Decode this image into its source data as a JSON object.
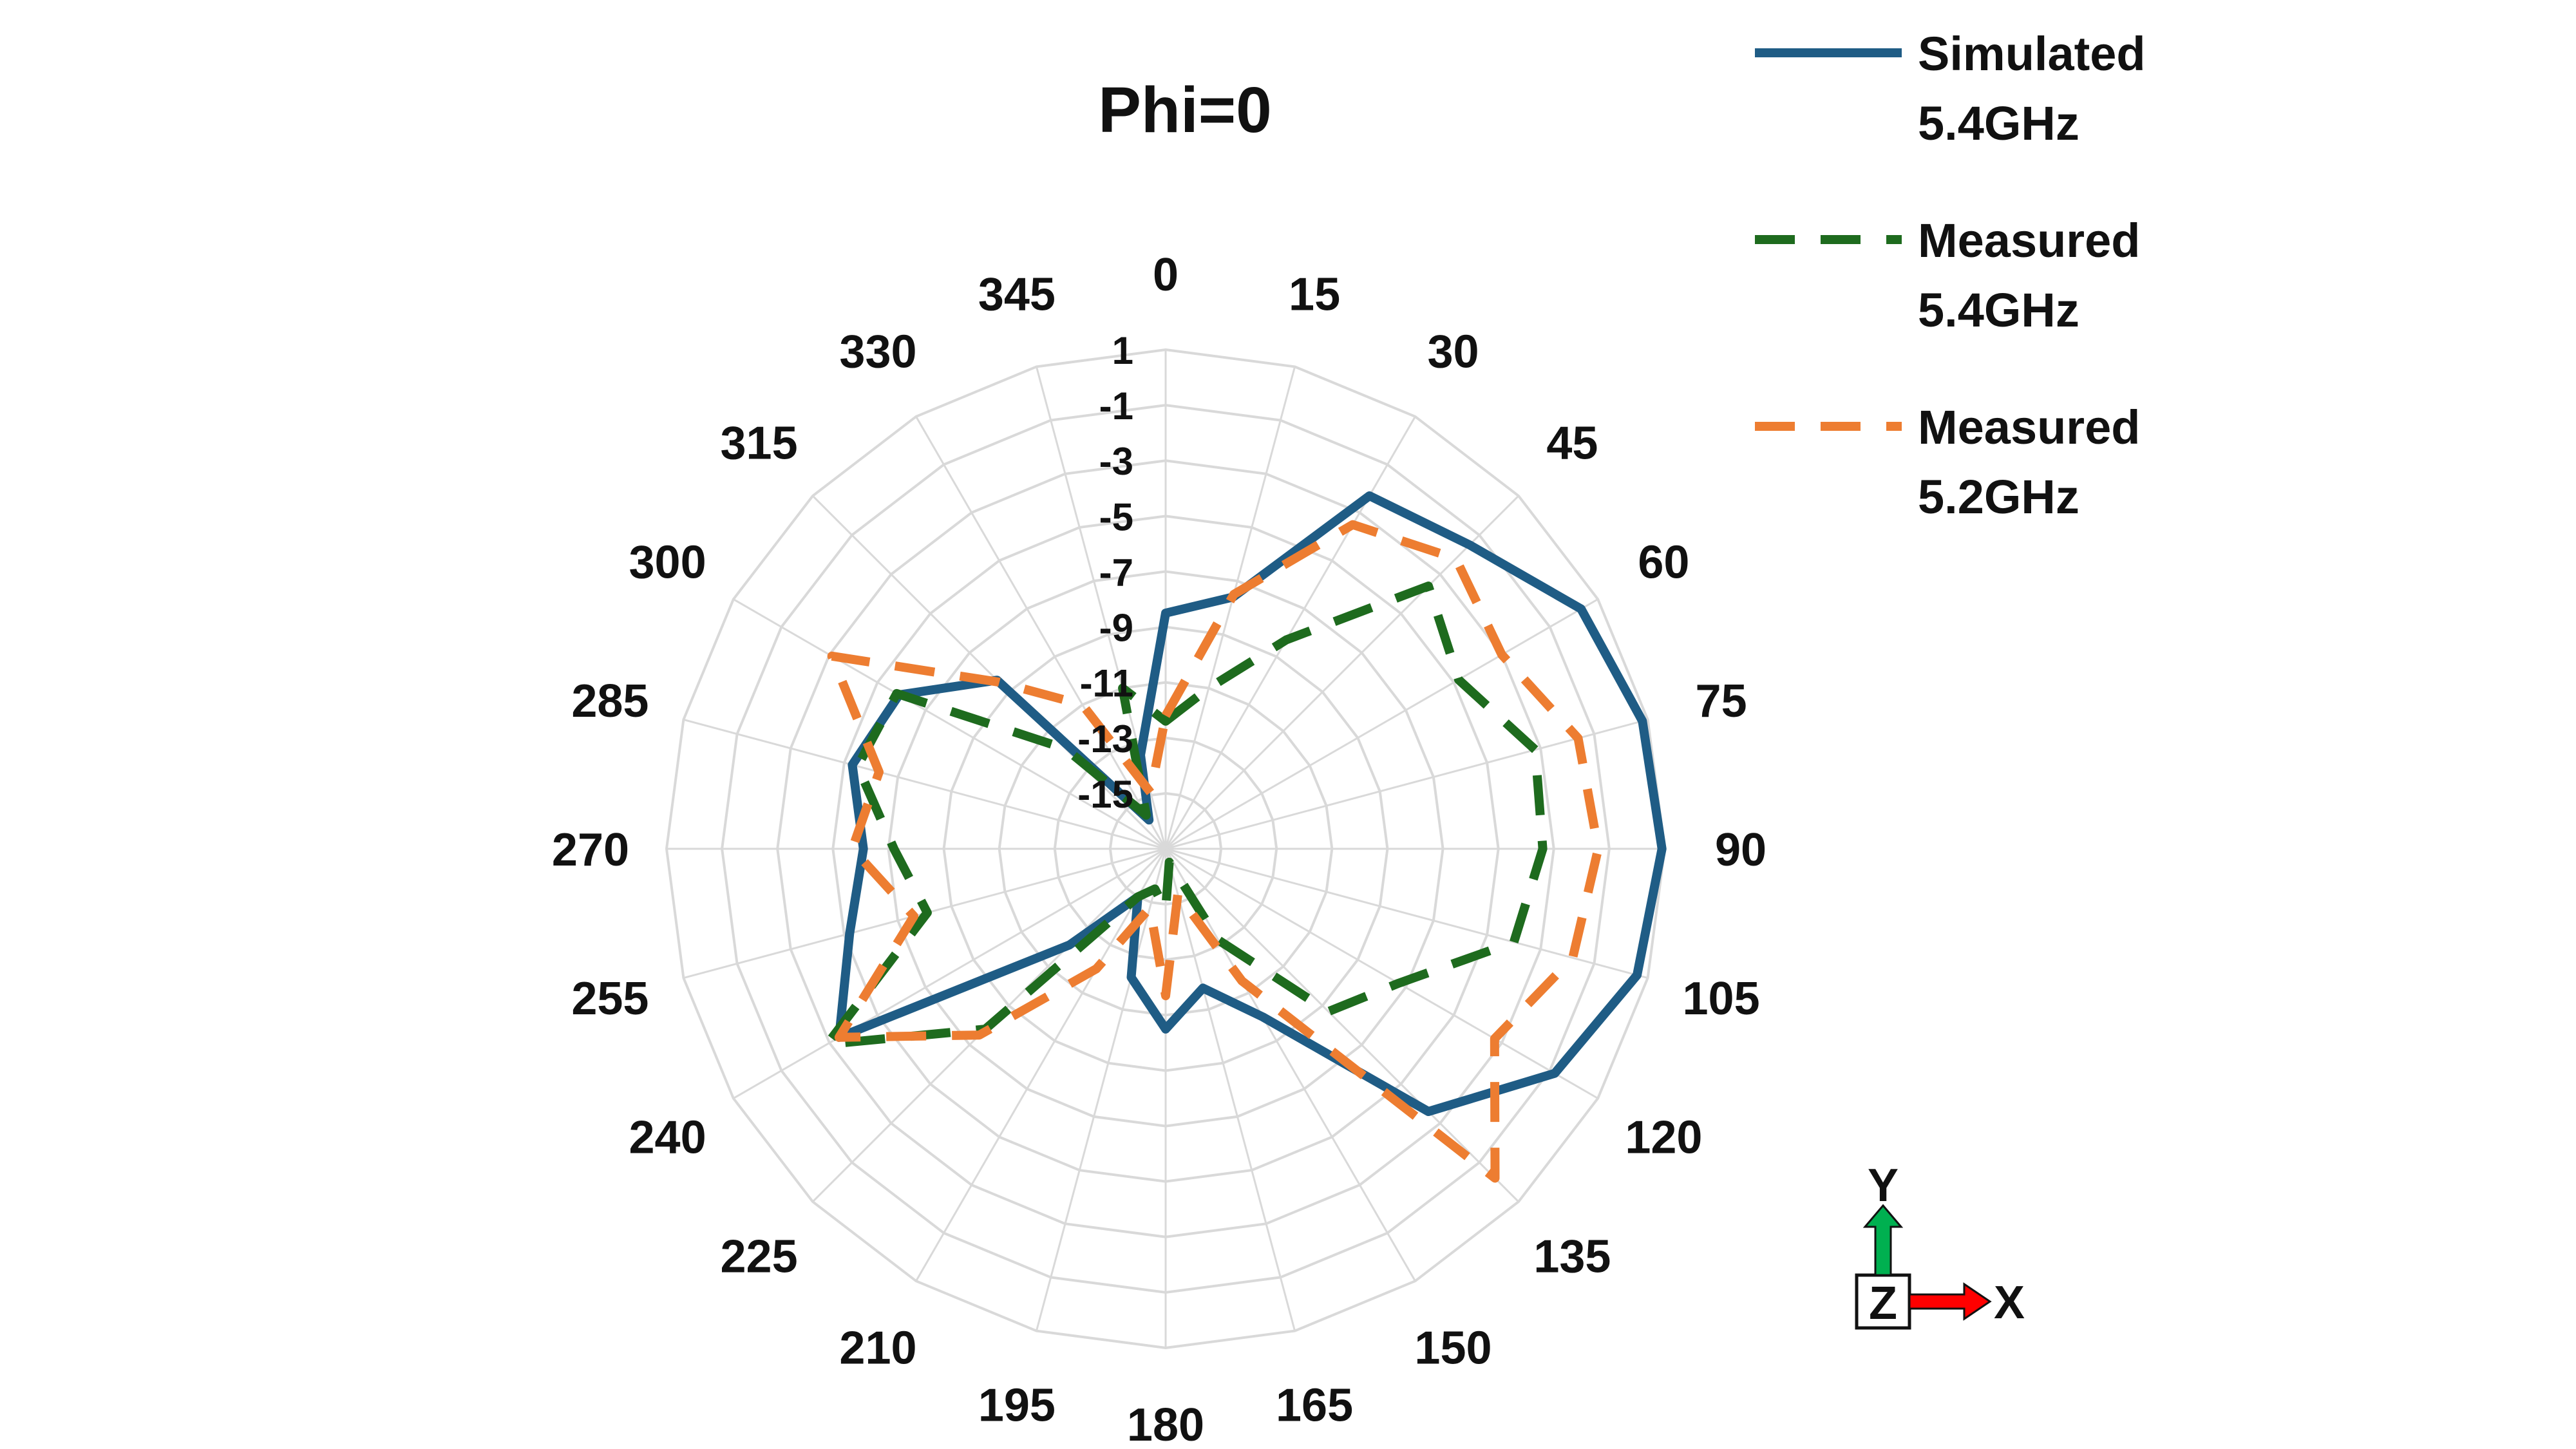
{
  "chart_data": {
    "type": "radar",
    "title": "Phi=0",
    "categories": [
      "0",
      "15",
      "30",
      "45",
      "60",
      "75",
      "90",
      "105",
      "120",
      "135",
      "150",
      "165",
      "180",
      "195",
      "210",
      "225",
      "240",
      "255",
      "270",
      "285",
      "300",
      "315",
      "330",
      "345"
    ],
    "radial_ticks": [
      "1",
      "-1",
      "-3",
      "-5",
      "-7",
      "-9",
      "-11",
      "-13",
      "-15"
    ],
    "rlim": [
      -17,
      1
    ],
    "grid": true,
    "legend_position": "top-right",
    "series": [
      {
        "name": "Simulated\n5.4GHz",
        "legend_lines": [
          "Simulated",
          "5.4GHz"
        ],
        "color": "#1f5c85",
        "dash": "solid",
        "values": [
          -8.5,
          -7.6,
          -2.3,
          -1.5,
          0.3,
          0.8,
          0.9,
          0.6,
          -0.8,
          -3.6,
          -10,
          -11.8,
          -10.5,
          -12.2,
          -15,
          -12.1,
          -3.4,
          -5.2,
          -6.1,
          -5.3,
          -5.9,
          -8.4,
          -15.8,
          -13.5
        ]
      },
      {
        "name": "Measured\n5.4GHz",
        "legend_lines": [
          "Measured",
          "5.4GHz"
        ],
        "color": "#1e6b1e",
        "dash": "dashed",
        "values": [
          -12.4,
          -11,
          -8.3,
          -3.6,
          -4.8,
          -3.2,
          -3.4,
          -4,
          -7.3,
          -8.7,
          -13.2,
          -16.5,
          -14.8,
          -15.5,
          -15,
          -7.8,
          -2.9,
          -8.1,
          -7.2,
          -5.5,
          -5.8,
          -11.9,
          -15.6,
          -11
        ]
      },
      {
        "name": "Measured\n5.2GHz",
        "legend_lines": [
          "Measured",
          "5.2GHz"
        ],
        "color": "#ed7d31",
        "dash": "dashed",
        "values": [
          -12.2,
          -7.5,
          -3.5,
          -2.2,
          -3,
          -1.6,
          -1.4,
          -1.8,
          -3.3,
          -0.2,
          -11.5,
          -15.3,
          -11.7,
          -14.8,
          -12,
          -7.5,
          -3.4,
          -7.6,
          -5.7,
          -6.3,
          -3.1,
          -8.5,
          -11,
          -14.9
        ]
      }
    ]
  },
  "axis_triad": {
    "x_label": "X",
    "y_label": "Y",
    "z_label": "Z",
    "x_color": "#ff0000",
    "y_color": "#00b050"
  }
}
